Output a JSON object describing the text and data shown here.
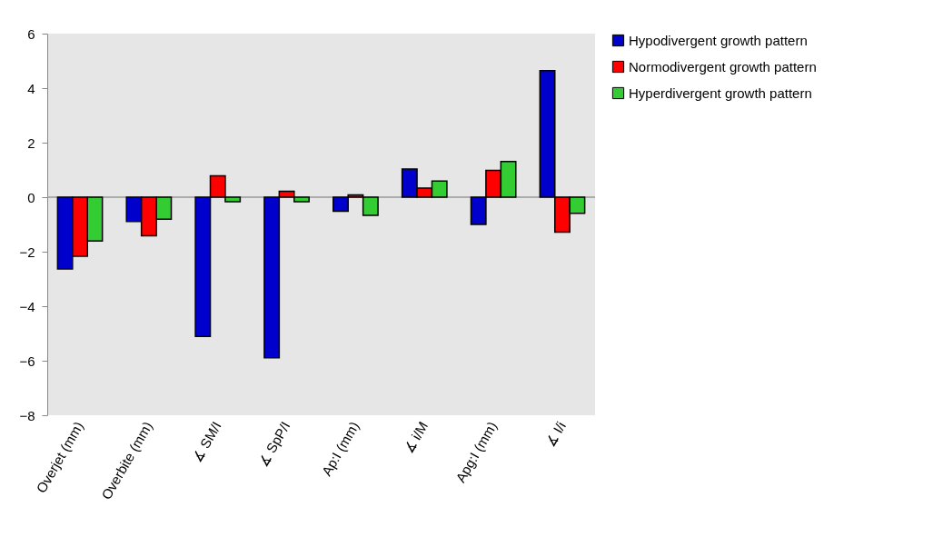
{
  "chart_data": {
    "type": "bar",
    "categories": [
      "Overjet (mm)",
      "Overbite (mm)",
      "∡ SM/I",
      "∡ SpP/I",
      "Ap:I (mm)",
      "∡ i/M",
      "Apg:I (mm)",
      "∡ I/i"
    ],
    "series": [
      {
        "name": "Hypodivergent growth pattern",
        "color": "#0000cc",
        "values": [
          -2.63,
          -0.89,
          -5.11,
          -5.89,
          -0.52,
          1.03,
          -1.0,
          4.64
        ]
      },
      {
        "name": "Normodivergent growth pattern",
        "color": "#ff0000",
        "values": [
          -2.17,
          -1.42,
          0.78,
          0.22,
          0.08,
          0.33,
          0.98,
          -1.28
        ]
      },
      {
        "name": "Hyperdivergent growth pattern",
        "color": "#33cc33",
        "values": [
          -1.61,
          -0.81,
          -0.17,
          -0.17,
          -0.67,
          0.59,
          1.31,
          -0.59
        ]
      }
    ],
    "ylim": [
      -8,
      6
    ],
    "yticks": [
      -8,
      -6,
      -4,
      -2,
      0,
      2,
      4,
      6
    ],
    "ref_lines": [
      {
        "axis": "y",
        "value": 0,
        "color": "#999999"
      }
    ],
    "grid": false,
    "legend": "right"
  }
}
